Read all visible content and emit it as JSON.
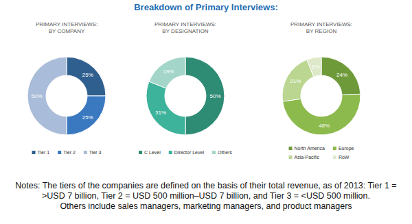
{
  "title": "Breakdown of Primary Interviews:",
  "chart_data": [
    {
      "type": "donut",
      "title": "PRIMARY INTERVIEWS:",
      "subtitle": "BY COMPANY",
      "categories": [
        "Tier 1",
        "Tier 2",
        "Tier 3"
      ],
      "values": [
        25,
        25,
        50
      ],
      "value_labels": [
        "25%",
        "25%",
        "50%"
      ],
      "data_labels": true,
      "colors": [
        "#2f5f8f",
        "#3a78bf",
        "#a9bcd9"
      ]
    },
    {
      "type": "donut",
      "title": "PRIMARY INTERVIEWS:",
      "subtitle": "BY DESIGNATION",
      "categories": [
        "C Level",
        "Director Level",
        "Others"
      ],
      "values": [
        50,
        31,
        19
      ],
      "value_labels": [
        "50%",
        "31%",
        "19%"
      ],
      "data_labels": true,
      "colors": [
        "#2e8b74",
        "#3db39b",
        "#a3d6c8"
      ]
    },
    {
      "type": "donut",
      "title": "PRIMARY INTERVIEWS:",
      "subtitle": "BY REGION",
      "categories": [
        "North America",
        "Europe",
        "Asia-Pacific",
        "RoW"
      ],
      "values": [
        24,
        48,
        21,
        6
      ],
      "value_labels": [
        "24%",
        "48%",
        "21%",
        "6%"
      ],
      "data_labels": true,
      "colors": [
        "#6e9a3a",
        "#8cba4c",
        "#bad690",
        "#dde9c9"
      ]
    }
  ],
  "notes": [
    "Notes: The tiers of the companies are defined on the basis of their total revenue, as of 2013: Tier 1 = >USD 7 billion, Tier 2 = USD 500 million–USD 7 billion, and Tier 3 = <USD 500 million.",
    "Others include sales managers, marketing managers, and product managers"
  ]
}
